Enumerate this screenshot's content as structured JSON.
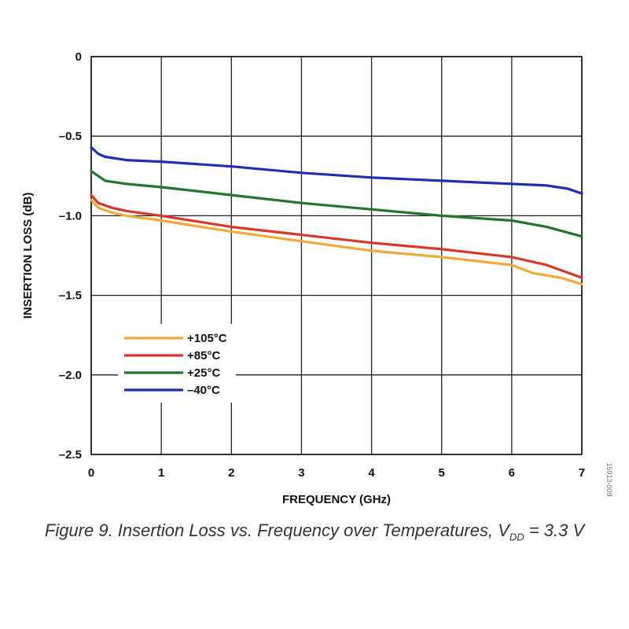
{
  "chart_data": {
    "type": "line",
    "xlabel": "FREQUENCY (GHz)",
    "ylabel": "INSERTION LOSS (dB)",
    "xlim": [
      0,
      7
    ],
    "ylim": [
      -2.5,
      0
    ],
    "x_ticks": [
      "0",
      "1",
      "2",
      "3",
      "4",
      "5",
      "6",
      "7"
    ],
    "y_ticks": [
      "0",
      "–0.5",
      "–1.0",
      "–1.5",
      "–2.0",
      "–2.5"
    ],
    "grid": true,
    "legend_position": "lower-left",
    "series": [
      {
        "name": "+105°C",
        "color": "#f2a93b",
        "points": [
          [
            0,
            -0.9
          ],
          [
            0.1,
            -0.95
          ],
          [
            0.3,
            -0.98
          ],
          [
            0.5,
            -1.0
          ],
          [
            1,
            -1.03
          ],
          [
            2,
            -1.1
          ],
          [
            3,
            -1.16
          ],
          [
            4,
            -1.22
          ],
          [
            5,
            -1.26
          ],
          [
            6,
            -1.31
          ],
          [
            6.3,
            -1.36
          ],
          [
            6.7,
            -1.39
          ],
          [
            7,
            -1.43
          ]
        ]
      },
      {
        "name": "+85°C",
        "color": "#d8372c",
        "points": [
          [
            0,
            -0.87
          ],
          [
            0.1,
            -0.92
          ],
          [
            0.3,
            -0.95
          ],
          [
            0.5,
            -0.97
          ],
          [
            1,
            -1.0
          ],
          [
            2,
            -1.07
          ],
          [
            3,
            -1.12
          ],
          [
            4,
            -1.17
          ],
          [
            5,
            -1.21
          ],
          [
            6,
            -1.26
          ],
          [
            6.5,
            -1.31
          ],
          [
            7,
            -1.39
          ]
        ]
      },
      {
        "name": "+25°C",
        "color": "#23742f",
        "points": [
          [
            0,
            -0.72
          ],
          [
            0.1,
            -0.75
          ],
          [
            0.2,
            -0.78
          ],
          [
            0.5,
            -0.8
          ],
          [
            1,
            -0.82
          ],
          [
            2,
            -0.87
          ],
          [
            3,
            -0.92
          ],
          [
            4,
            -0.96
          ],
          [
            5,
            -1.0
          ],
          [
            6,
            -1.03
          ],
          [
            6.5,
            -1.07
          ],
          [
            7,
            -1.13
          ]
        ]
      },
      {
        "name": "–40°C",
        "color": "#1f2fb2",
        "points": [
          [
            0,
            -0.57
          ],
          [
            0.1,
            -0.61
          ],
          [
            0.2,
            -0.63
          ],
          [
            0.5,
            -0.65
          ],
          [
            1,
            -0.66
          ],
          [
            2,
            -0.69
          ],
          [
            3,
            -0.73
          ],
          [
            4,
            -0.76
          ],
          [
            5,
            -0.78
          ],
          [
            6,
            -0.8
          ],
          [
            6.5,
            -0.81
          ],
          [
            6.8,
            -0.83
          ],
          [
            7,
            -0.86
          ]
        ]
      }
    ]
  },
  "side_code": "15913-009",
  "caption": {
    "prefix": "Figure 9. Insertion Loss vs. Frequency over Temperatures, V",
    "subscript": "DD",
    "suffix": " = 3.3 V"
  }
}
